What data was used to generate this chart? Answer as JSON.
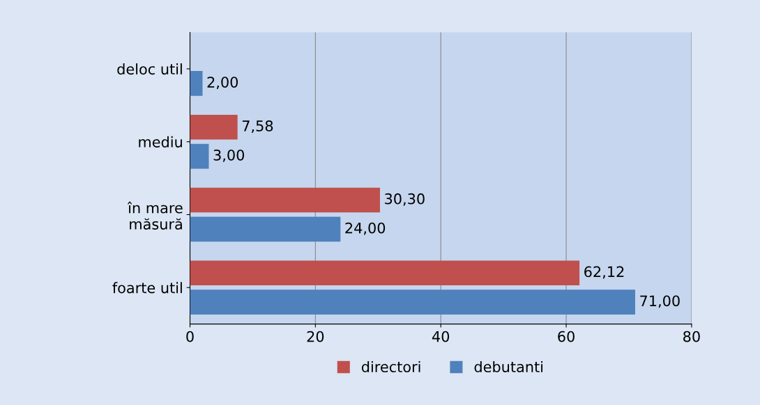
{
  "chart_data": {
    "type": "bar",
    "orientation": "horizontal",
    "categories": [
      "deloc util",
      "mediu",
      "în mare\nmăsură",
      "foarte util"
    ],
    "series": [
      {
        "name": "directori",
        "color": "#c0504d",
        "values": [
          null,
          7.58,
          30.3,
          62.12
        ],
        "value_labels": [
          null,
          "7,58",
          "30,30",
          "62,12"
        ]
      },
      {
        "name": "debutanti",
        "color": "#4f81bd",
        "values": [
          2.0,
          3.0,
          24.0,
          71.0
        ],
        "value_labels": [
          "2,00",
          "3,00",
          "24,00",
          "71,00"
        ]
      }
    ],
    "xlim": [
      0,
      80
    ],
    "xticks": [
      0,
      20,
      40,
      60,
      80
    ],
    "grid": "x",
    "legend": "bottom"
  }
}
